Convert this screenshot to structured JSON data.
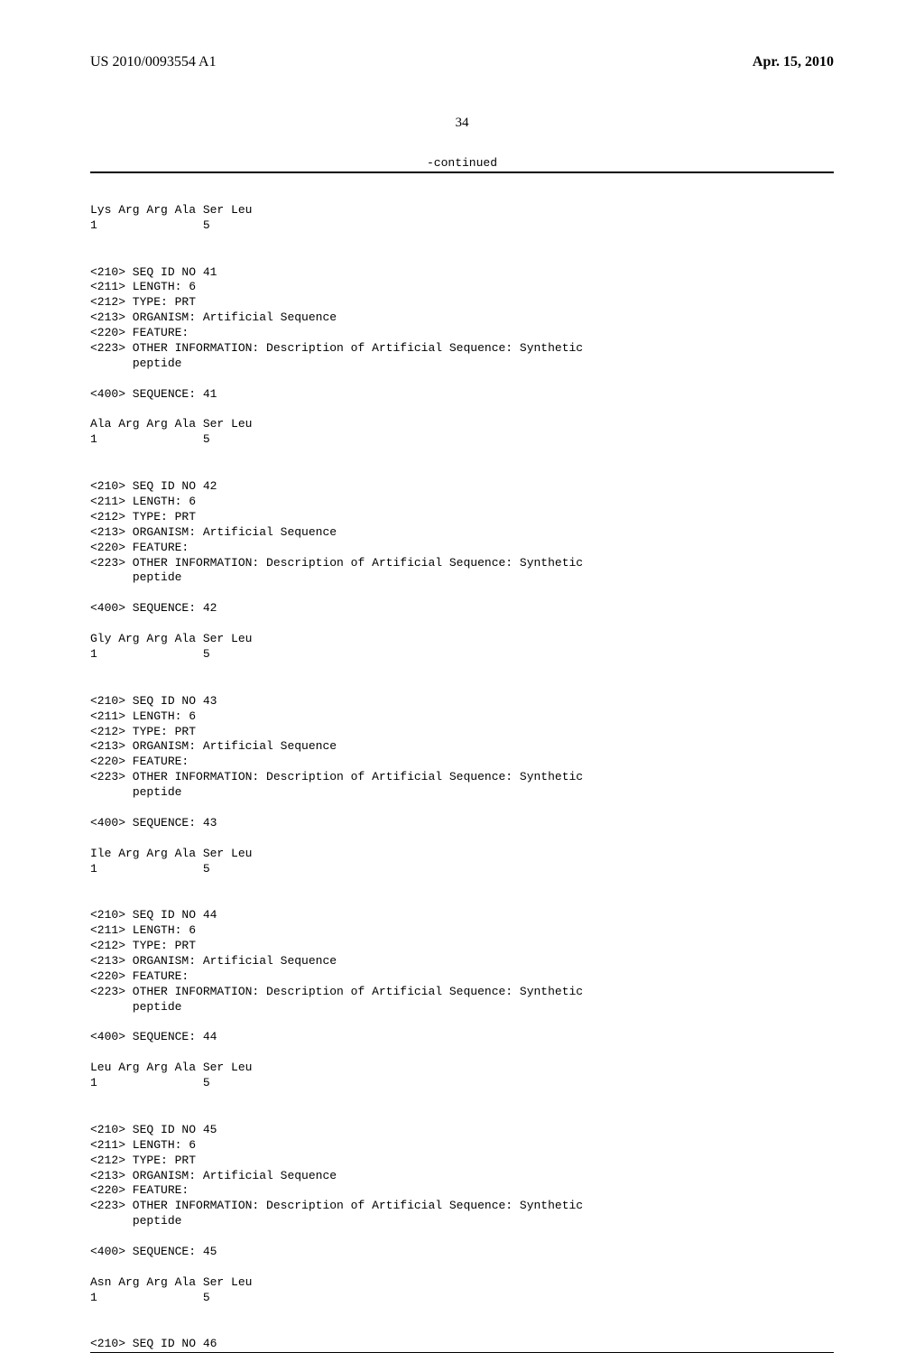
{
  "header": {
    "pub_number": "US 2010/0093554 A1",
    "pub_date": "Apr. 15, 2010"
  },
  "page_number": "34",
  "continued_label": "-continued",
  "seq_top": {
    "residues": "Lys Arg Arg Ala Ser Leu",
    "positions": "1               5"
  },
  "sequences": [
    {
      "id": "41",
      "length": "6",
      "type": "PRT",
      "organism": "Artificial Sequence",
      "feature": "",
      "other_info": "Description of Artificial Sequence: Synthetic",
      "other_info2": "peptide",
      "seq_num": "41",
      "residues": "Ala Arg Arg Ala Ser Leu",
      "positions": "1               5"
    },
    {
      "id": "42",
      "length": "6",
      "type": "PRT",
      "organism": "Artificial Sequence",
      "feature": "",
      "other_info": "Description of Artificial Sequence: Synthetic",
      "other_info2": "peptide",
      "seq_num": "42",
      "residues": "Gly Arg Arg Ala Ser Leu",
      "positions": "1               5"
    },
    {
      "id": "43",
      "length": "6",
      "type": "PRT",
      "organism": "Artificial Sequence",
      "feature": "",
      "other_info": "Description of Artificial Sequence: Synthetic",
      "other_info2": "peptide",
      "seq_num": "43",
      "residues": "Ile Arg Arg Ala Ser Leu",
      "positions": "1               5"
    },
    {
      "id": "44",
      "length": "6",
      "type": "PRT",
      "organism": "Artificial Sequence",
      "feature": "",
      "other_info": "Description of Artificial Sequence: Synthetic",
      "other_info2": "peptide",
      "seq_num": "44",
      "residues": "Leu Arg Arg Ala Ser Leu",
      "positions": "1               5"
    },
    {
      "id": "45",
      "length": "6",
      "type": "PRT",
      "organism": "Artificial Sequence",
      "feature": "",
      "other_info": "Description of Artificial Sequence: Synthetic",
      "other_info2": "peptide",
      "seq_num": "45",
      "residues": "Asn Arg Arg Ala Ser Leu",
      "positions": "1               5"
    }
  ],
  "seq_tail": {
    "id": "46"
  },
  "labels": {
    "seq_id": "<210> SEQ ID NO ",
    "length": "<211> LENGTH: ",
    "type": "<212> TYPE: ",
    "organism": "<213> ORGANISM: ",
    "feature": "<220> FEATURE:",
    "other_info": "<223> OTHER INFORMATION: ",
    "other_info_indent": "      ",
    "sequence": "<400> SEQUENCE: "
  }
}
